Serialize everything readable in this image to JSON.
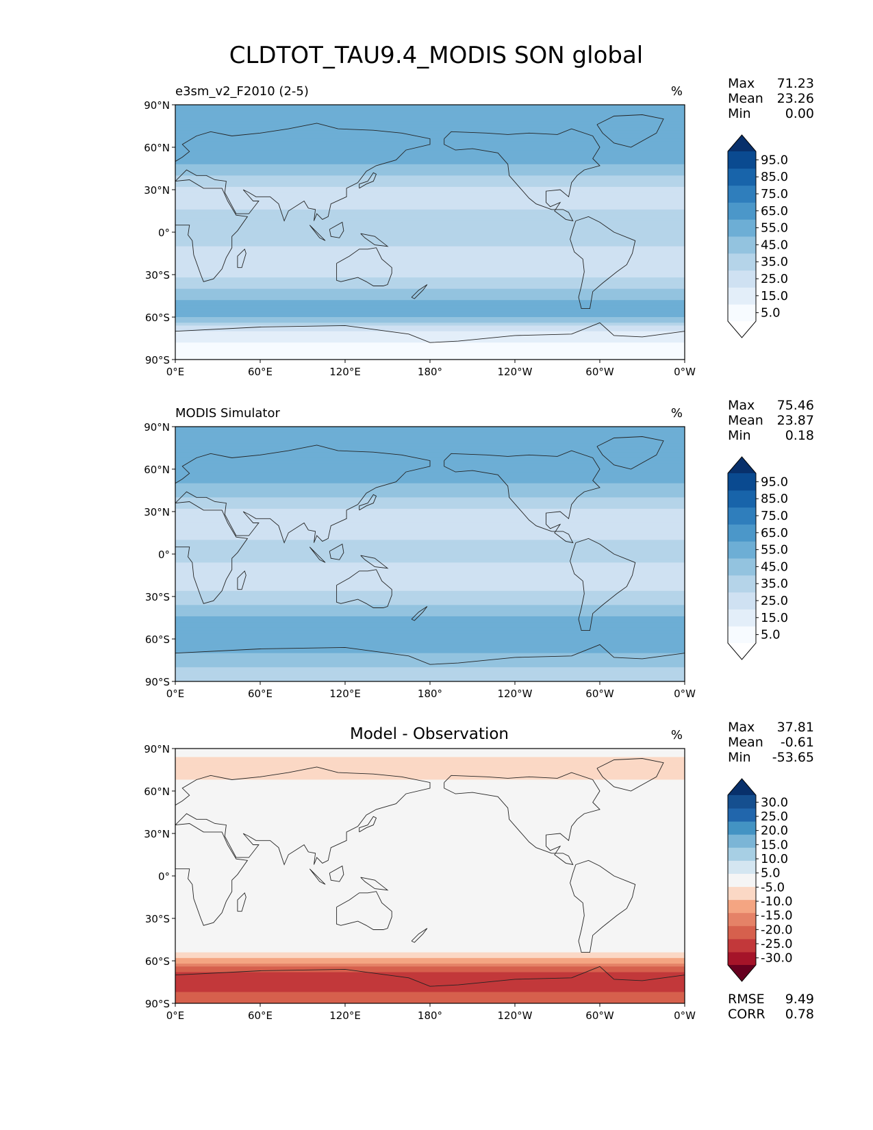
{
  "figure_title": "CLDTOT_TAU9.4_MODIS SON global",
  "chart_data": [
    {
      "type": "heatmap",
      "panel": "test",
      "left_title": "e3sm_v2_F2010 (2-5)",
      "center_title": "",
      "units": "%",
      "stats": [
        {
          "label": "Max",
          "value": "71.23"
        },
        {
          "label": "Mean",
          "value": "23.26"
        },
        {
          "label": "Min",
          "value": "0.00"
        }
      ],
      "colorbar": {
        "levels": [
          0,
          5,
          10,
          20,
          30,
          40,
          50,
          60,
          70,
          80,
          90,
          100
        ],
        "tick_labels": [
          "5.0",
          "15.0",
          "25.0",
          "35.0",
          "45.0",
          "55.0",
          "65.0",
          "75.0",
          "85.0",
          "95.0"
        ],
        "colors": [
          "#f7fbff",
          "#e3eef9",
          "#cfe1f2",
          "#b5d4e9",
          "#93c3df",
          "#6daed5",
          "#4b97c9",
          "#2f7ebc",
          "#1864aa",
          "#0a4a90"
        ],
        "extend_low_color": "#ffffff",
        "extend_high_color": "#08306b"
      },
      "xlabel_ticks": [
        "0°E",
        "60°E",
        "120°E",
        "180°",
        "120°W",
        "60°W",
        "0°W"
      ],
      "ylabel_ticks": [
        "90°N",
        "60°N",
        "30°N",
        "0°",
        "30°S",
        "60°S",
        "90°S"
      ],
      "lat_range": [
        -90,
        90
      ],
      "lon_range": [
        0,
        360
      ],
      "zonal_profile_lat": [
        90,
        80,
        70,
        60,
        50,
        40,
        30,
        20,
        10,
        0,
        -10,
        -20,
        -30,
        -40,
        -50,
        -60,
        -70,
        -80,
        -90
      ],
      "zonal_profile_value": [
        45,
        42,
        45,
        48,
        44,
        30,
        16,
        18,
        24,
        26,
        20,
        14,
        18,
        30,
        44,
        40,
        10,
        3,
        2
      ]
    },
    {
      "type": "heatmap",
      "panel": "reference",
      "left_title": "MODIS Simulator",
      "center_title": "",
      "units": "%",
      "stats": [
        {
          "label": "Max",
          "value": "75.46"
        },
        {
          "label": "Mean",
          "value": "23.87"
        },
        {
          "label": "Min",
          "value": "0.18"
        }
      ],
      "colorbar": {
        "levels": [
          0,
          5,
          10,
          20,
          30,
          40,
          50,
          60,
          70,
          80,
          90,
          100
        ],
        "tick_labels": [
          "5.0",
          "15.0",
          "25.0",
          "35.0",
          "45.0",
          "55.0",
          "65.0",
          "75.0",
          "85.0",
          "95.0"
        ],
        "colors": [
          "#f7fbff",
          "#e3eef9",
          "#cfe1f2",
          "#b5d4e9",
          "#93c3df",
          "#6daed5",
          "#4b97c9",
          "#2f7ebc",
          "#1864aa",
          "#0a4a90"
        ],
        "extend_low_color": "#ffffff",
        "extend_high_color": "#08306b"
      },
      "xlabel_ticks": [
        "0°E",
        "60°E",
        "120°E",
        "180°",
        "120°W",
        "60°W",
        "0°W"
      ],
      "ylabel_ticks": [
        "90°N",
        "60°N",
        "30°N",
        "0°",
        "30°S",
        "60°S",
        "90°S"
      ],
      "lat_range": [
        -90,
        90
      ],
      "lon_range": [
        0,
        360
      ],
      "zonal_profile_lat": [
        90,
        80,
        70,
        60,
        50,
        40,
        30,
        20,
        10,
        0,
        -10,
        -20,
        -30,
        -40,
        -50,
        -60,
        -70,
        -80,
        -90
      ],
      "zonal_profile_value": [
        48,
        45,
        42,
        44,
        40,
        30,
        18,
        16,
        20,
        22,
        18,
        16,
        22,
        34,
        46,
        50,
        40,
        30,
        28
      ]
    },
    {
      "type": "heatmap",
      "panel": "difference",
      "left_title": "",
      "center_title": "Model - Observation",
      "units": "%",
      "stats": [
        {
          "label": "Max",
          "value": "37.81"
        },
        {
          "label": "Mean",
          "value": "-0.61"
        },
        {
          "label": "Min",
          "value": "-53.65"
        }
      ],
      "colorbar": {
        "levels": [
          -35,
          -30,
          -25,
          -20,
          -15,
          -10,
          -5,
          5,
          10,
          15,
          20,
          25,
          30,
          35
        ],
        "tick_labels": [
          "-30.0",
          "-25.0",
          "-20.0",
          "-15.0",
          "-10.0",
          "-5.0",
          "5.0",
          "10.0",
          "15.0",
          "20.0",
          "25.0",
          "30.0"
        ],
        "colors": [
          "#a51429",
          "#c2383a",
          "#d6604d",
          "#e58267",
          "#f4a582",
          "#fbd8c5",
          "#f5f5f5",
          "#d4e6f1",
          "#a7cfe4",
          "#7bb5d6",
          "#4393c3",
          "#2166ac",
          "#154f8f"
        ],
        "extend_low_color": "#67001f",
        "extend_high_color": "#08306b"
      },
      "rmse_corr": [
        {
          "label": "RMSE",
          "value": "9.49"
        },
        {
          "label": "CORR",
          "value": "0.78"
        }
      ],
      "xlabel_ticks": [
        "0°E",
        "60°E",
        "120°E",
        "180°",
        "120°W",
        "60°W",
        "0°W"
      ],
      "ylabel_ticks": [
        "90°N",
        "60°N",
        "30°N",
        "0°",
        "30°S",
        "60°S",
        "90°S"
      ],
      "lat_range": [
        -90,
        90
      ],
      "lon_range": [
        0,
        360
      ],
      "zonal_profile_lat": [
        90,
        80,
        70,
        60,
        50,
        40,
        30,
        20,
        10,
        0,
        -10,
        -20,
        -30,
        -40,
        -50,
        -60,
        -70,
        -80,
        -90
      ],
      "zonal_profile_value": [
        -3,
        -6,
        -8,
        2,
        5,
        0,
        -2,
        3,
        2,
        4,
        3,
        -2,
        -4,
        -4,
        -2,
        -12,
        -30,
        -26,
        -20
      ]
    }
  ]
}
